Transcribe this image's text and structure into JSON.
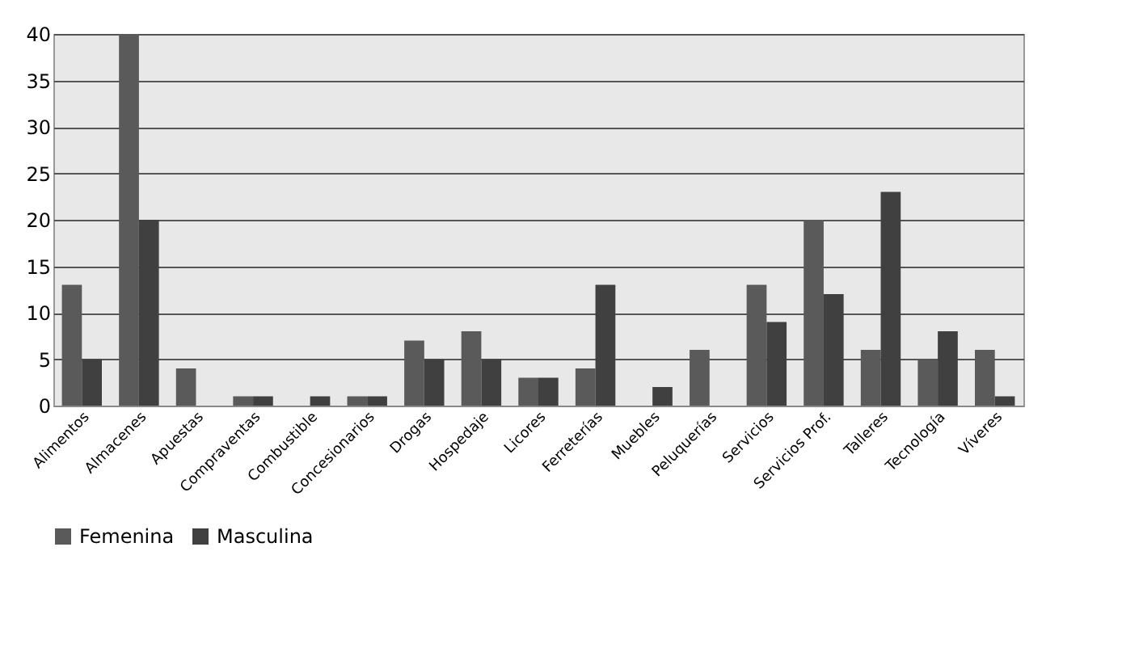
{
  "chart_data": {
    "type": "bar",
    "categories": [
      "Alimentos",
      "Almacenes",
      "Apuestas",
      "Compraventas",
      "Combustible",
      "Concesionarios",
      "Drogas",
      "Hospedaje",
      "Licores",
      "Ferreterías",
      "Muebles",
      "Peluquerías",
      "Servicios",
      "Servicios Prof.",
      "Talleres",
      "Tecnología",
      "Víveres"
    ],
    "series": [
      {
        "name": "Femenina",
        "color": "#5a5a5a",
        "values": [
          13,
          40,
          4,
          1,
          0,
          1,
          7,
          8,
          3,
          4,
          0,
          6,
          13,
          20,
          6,
          5,
          6
        ]
      },
      {
        "name": "Masculina",
        "color": "#404040",
        "values": [
          5,
          20,
          0,
          1,
          1,
          1,
          5,
          5,
          3,
          13,
          2,
          0,
          9,
          12,
          23,
          8,
          1
        ]
      }
    ],
    "ylim": [
      0,
      40
    ],
    "yticks": [
      0,
      5,
      10,
      15,
      20,
      25,
      30,
      35,
      40
    ],
    "grid": "y",
    "legend": "bottom"
  }
}
